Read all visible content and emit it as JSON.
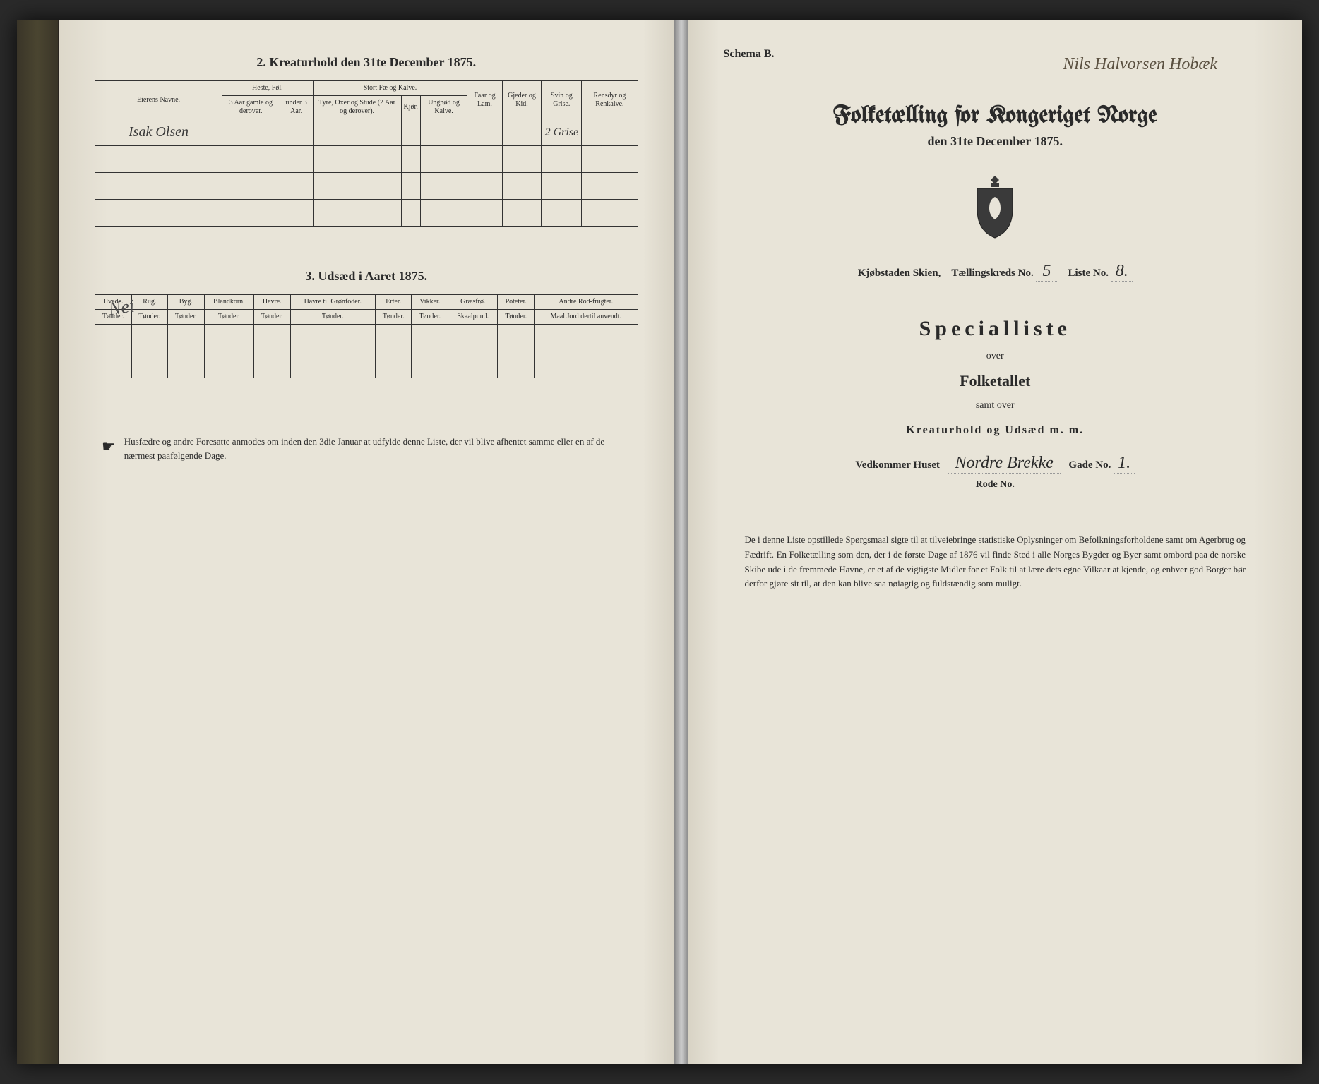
{
  "left": {
    "section2_title": "2.  Kreaturhold den 31te December 1875.",
    "table2": {
      "name_header": "Eierens Navne.",
      "groups": {
        "heste": "Heste, Føl.",
        "stort": "Stort Fæ og Kalve.",
        "faar": "Faar og Lam.",
        "gjeder": "Gjeder og Kid.",
        "svin": "Svin og Grise.",
        "rensdyr": "Rensdyr og Renkalve."
      },
      "sub": {
        "h1": "3 Aar gamle og derover.",
        "h2": "under 3 Aar.",
        "s1": "Tyre, Oxer og Stude (2 Aar og derover).",
        "s2": "Kjør.",
        "s3": "Ungnød og Kalve."
      },
      "row_name": "Isak Olsen",
      "row_svin": "2 Grise"
    },
    "section3_title": "3.  Udsæd i Aaret 1875.",
    "nei_label": "Nei",
    "table3": {
      "cols": [
        "Hvede.",
        "Rug.",
        "Byg.",
        "Blandkorn.",
        "Havre.",
        "Havre til Grønfoder.",
        "Erter.",
        "Vikker.",
        "Græsfrø.",
        "Poteter.",
        "Andre Rod-frugter."
      ],
      "units": [
        "Tønder.",
        "Tønder.",
        "Tønder.",
        "Tønder.",
        "Tønder.",
        "Tønder.",
        "Tønder.",
        "Tønder.",
        "Skaalpund.",
        "Tønder.",
        "Maal Jord dertil anvendt."
      ]
    },
    "footnote": "Husfædre og andre Foresatte anmodes om inden den 3die Januar at udfylde denne Liste, der vil blive afhentet samme eller en af de nærmest paafølgende Dage."
  },
  "right": {
    "top_handwriting": "Nils Halvorsen Hobæk",
    "schema": "Schema B.",
    "title": "Folketælling for Kongeriget Norge",
    "subtitle": "den 31te December 1875.",
    "town_label": "Kjøbstaden Skien,",
    "kreds_label": "Tællingskreds No.",
    "kreds_no": "5",
    "liste_label": "Liste No.",
    "liste_no": "8.",
    "special": "Specialliste",
    "over": "over",
    "folketallet": "Folketallet",
    "samt": "samt over",
    "kreatur": "Kreaturhold og Udsæd m. m.",
    "vedk_label": "Vedkommer Huset",
    "house": "Nordre Brekke",
    "gade_label": "Gade No.",
    "gade_no": "1.",
    "rode_label": "Rode No.",
    "footnote": "De i denne Liste opstillede Spørgsmaal sigte til at tilveiebringe statistiske Oplysninger om Befolkningsforholdene samt om Agerbrug og Fædrift. En Folketælling som den, der i de første Dage af 1876 vil finde Sted i alle Norges Bygder og Byer samt ombord paa de norske Skibe ude i de fremmede Havne, er et af de vigtigste Midler for et Folk til at lære dets egne Vilkaar at kjende, og enhver god Borger bør derfor gjøre sit til, at den kan blive saa nøiagtig og fuldstændig som muligt."
  },
  "colors": {
    "paper": "#e8e4d8",
    "ink": "#2a2a2a",
    "crest": "#3a3a3a"
  }
}
